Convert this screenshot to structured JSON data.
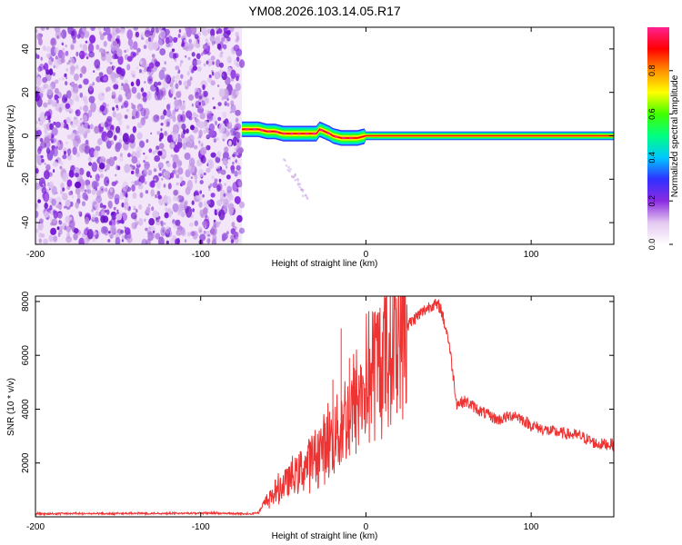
{
  "title": "YM08.2026.103.14.05.R17",
  "chart_data": [
    {
      "type": "heatmap",
      "panel": "spectrogram",
      "xlabel": "Height of straight line (km)",
      "ylabel": "Frequency (Hz)",
      "xlim": [
        -200,
        150
      ],
      "ylim": [
        -50,
        50
      ],
      "xticks": [
        -200,
        -100,
        0,
        100
      ],
      "xtick_labels": [
        "-200",
        "-100",
        "0",
        "100"
      ],
      "yticks": [
        -40,
        -20,
        0,
        20,
        40
      ],
      "ytick_labels": [
        "-40",
        "-20",
        "0",
        "20",
        "40"
      ],
      "colorbar": {
        "label": "Normalized spectral amplitude",
        "range": [
          0.0,
          1.0
        ],
        "ticks": [
          0.0,
          0.2,
          0.4,
          0.6,
          0.8
        ],
        "tick_labels": [
          "0.0",
          "0.2",
          "0.4",
          "0.6",
          "0.8"
        ],
        "colormap": [
          "#ffffff",
          "#e4c8f0",
          "#8a2be2",
          "#3030ff",
          "#00c8ff",
          "#00ff80",
          "#40ff00",
          "#ffff00",
          "#ff9000",
          "#ff0000",
          "#ff2090"
        ]
      },
      "regions": [
        {
          "name": "noise",
          "x_range": [
            -200,
            -75
          ],
          "y_range": [
            -50,
            50
          ],
          "amplitude": [
            0.05,
            0.3
          ]
        },
        {
          "name": "carrier",
          "x_range": [
            -75,
            150
          ],
          "y_range": [
            -3,
            3
          ],
          "amplitude": [
            0.6,
            1.0
          ]
        },
        {
          "name": "faint-tail",
          "x_range": [
            -50,
            -35
          ],
          "y_range": [
            -30,
            -10
          ],
          "amplitude": [
            0.02,
            0.08
          ]
        }
      ],
      "carrier_centroid": {
        "x": [
          -75,
          -70,
          -65,
          -60,
          -55,
          -50,
          -45,
          -40,
          -35,
          -30,
          -28,
          -25,
          -22,
          -20,
          -15,
          -10,
          -5,
          0,
          150
        ],
        "y": [
          3,
          3,
          3,
          2,
          2,
          1,
          1,
          1,
          1,
          1,
          3,
          2,
          1,
          0,
          -1,
          -1,
          -1,
          0,
          0
        ]
      },
      "grid": false
    },
    {
      "type": "line",
      "panel": "snr",
      "xlabel": "Height of straight line (km)",
      "ylabel": "SNR (10 * v/v)",
      "xlim": [
        -200,
        150
      ],
      "ylim": [
        0,
        8200
      ],
      "xticks": [
        -200,
        -100,
        0,
        100
      ],
      "xtick_labels": [
        "-200",
        "-100",
        "0",
        "100"
      ],
      "yticks": [
        2000,
        4000,
        6000,
        8000
      ],
      "ytick_labels": [
        "2000",
        "4000",
        "6000",
        "8000"
      ],
      "color": "#ee3333",
      "envelope": {
        "x": [
          -200,
          -100,
          -70,
          -65,
          -60,
          -50,
          -40,
          -30,
          -20,
          -10,
          0,
          10,
          20,
          30,
          40,
          45,
          50,
          55,
          60,
          70,
          80,
          90,
          100,
          110,
          120,
          130,
          140,
          150
        ],
        "y": [
          100,
          120,
          100,
          150,
          600,
          1200,
          1700,
          2300,
          3000,
          3800,
          4900,
          5900,
          6800,
          7400,
          7900,
          7800,
          6600,
          4200,
          4300,
          3900,
          3600,
          3800,
          3400,
          3200,
          3100,
          3000,
          2700,
          2700
        ]
      },
      "spikes": [
        {
          "x": -15,
          "y": 7000
        },
        {
          "x": -10,
          "y": 5900
        },
        {
          "x": -20,
          "y": 5100
        }
      ],
      "grid": false
    }
  ]
}
